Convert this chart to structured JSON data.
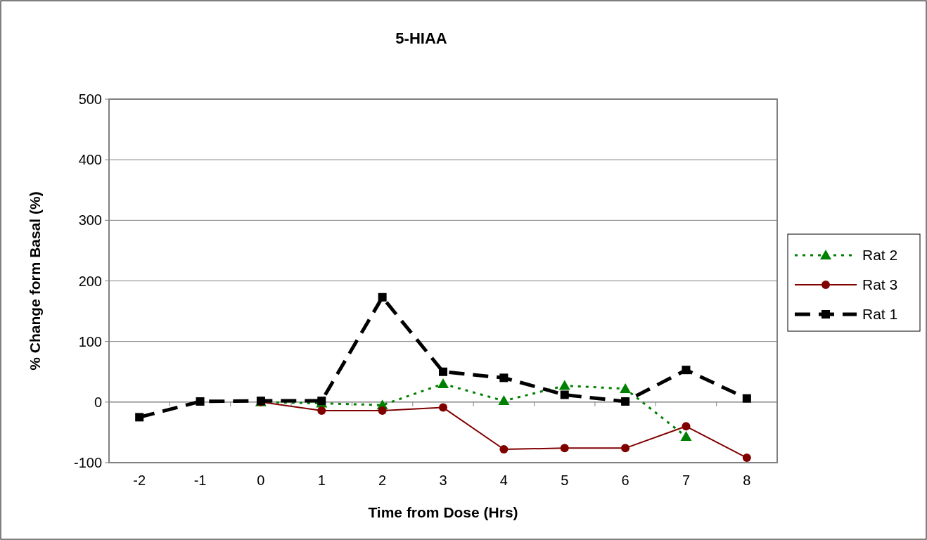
{
  "chart_data": {
    "type": "line",
    "title": "5-HIAA",
    "xlabel": "Time from Dose (Hrs)",
    "ylabel": "% Change form Basal (%)",
    "categories": [
      "-2",
      "-1",
      "0",
      "1",
      "2",
      "3",
      "4",
      "5",
      "6",
      "7",
      "8"
    ],
    "series": [
      {
        "name": "Rat 2",
        "color": "#008000",
        "marker": "triangle",
        "line_style": "dotted",
        "values": [
          null,
          null,
          0,
          -2,
          -5,
          30,
          2,
          27,
          22,
          -57,
          null
        ]
      },
      {
        "name": "Rat 3",
        "color": "#800000",
        "marker": "circle",
        "line_style": "solid",
        "values": [
          null,
          null,
          0,
          -14,
          -14,
          -9,
          -78,
          -76,
          -76,
          -40,
          -92
        ]
      },
      {
        "name": "Rat 1",
        "color": "#000000",
        "marker": "square",
        "line_style": "dashed",
        "values": [
          -25,
          1,
          2,
          2,
          173,
          50,
          40,
          12,
          1,
          53,
          6
        ]
      }
    ],
    "ylim": [
      -100,
      500
    ],
    "yticks": [
      -100,
      0,
      100,
      200,
      300,
      400,
      500
    ],
    "grid": "y",
    "legend": "right"
  }
}
